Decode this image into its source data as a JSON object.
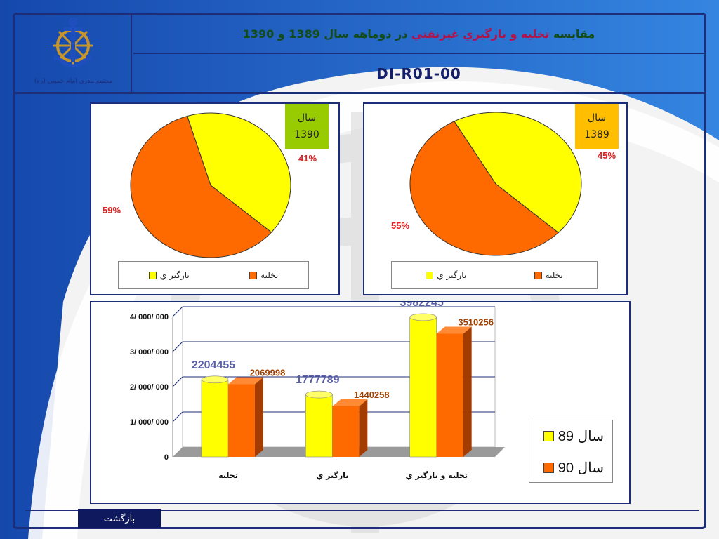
{
  "header": {
    "title_prefix": "مقايسه",
    "title_highlight": "تخليه و بارگيري غيرنفتي",
    "title_suffix": "در دوماهه سال 1389 و 1390",
    "code": "DI-R01-00",
    "logo_caption": "مجتمع بندري امام خميني (ره)"
  },
  "colors": {
    "frame": "#1c2d7a",
    "unloading": "#ff6a00",
    "loading": "#ffff00",
    "year_1390_badge": "#99cc00",
    "year_1389_badge": "#ffbf00"
  },
  "pies": [
    {
      "year_label": "سال",
      "year": "1390",
      "unloading_label": "59%",
      "loading_label": "41%",
      "legend": {
        "unloading": "تخليه",
        "loading": "بارگير ي"
      }
    },
    {
      "year_label": "سال",
      "year": "1389",
      "unloading_label": "55%",
      "loading_label": "45%",
      "legend": {
        "unloading": "تخليه",
        "loading": "بارگير ي"
      }
    }
  ],
  "chart_data": [
    {
      "type": "pie",
      "title": "سال 1390",
      "labels": [
        "تخليه",
        "بارگير ي"
      ],
      "values": [
        59,
        41
      ],
      "colors": [
        "#ff6a00",
        "#ffff00"
      ],
      "legend": "bottom"
    },
    {
      "type": "pie",
      "title": "سال 1389",
      "labels": [
        "تخليه",
        "بارگير ي"
      ],
      "values": [
        55,
        45
      ],
      "colors": [
        "#ff6a00",
        "#ffff00"
      ],
      "legend": "bottom"
    },
    {
      "type": "bar",
      "categories": [
        "تخليه",
        "بارگير ي",
        "تخليه و بارگير ي"
      ],
      "series": [
        {
          "name": "سال 89",
          "values": [
            2204455,
            1777789,
            3982245
          ],
          "color": "#ffff00",
          "label_color": "#5a5fa6"
        },
        {
          "name": "سال 90",
          "values": [
            2069998,
            1440258,
            3510256
          ],
          "color": "#ff6a00",
          "label_color": "#a04000"
        }
      ],
      "ylim": [
        0,
        4000000
      ],
      "yticks": [
        0,
        1000000,
        2000000,
        3000000,
        4000000
      ],
      "ytick_labels": [
        "0",
        "1/ 000/ 000",
        "2/ 000/ 000",
        "3/ 000/ 000",
        "4/ 000/ 000"
      ],
      "grid": true,
      "legend": "right"
    }
  ],
  "footer": {
    "back_label": "بازگشت"
  }
}
